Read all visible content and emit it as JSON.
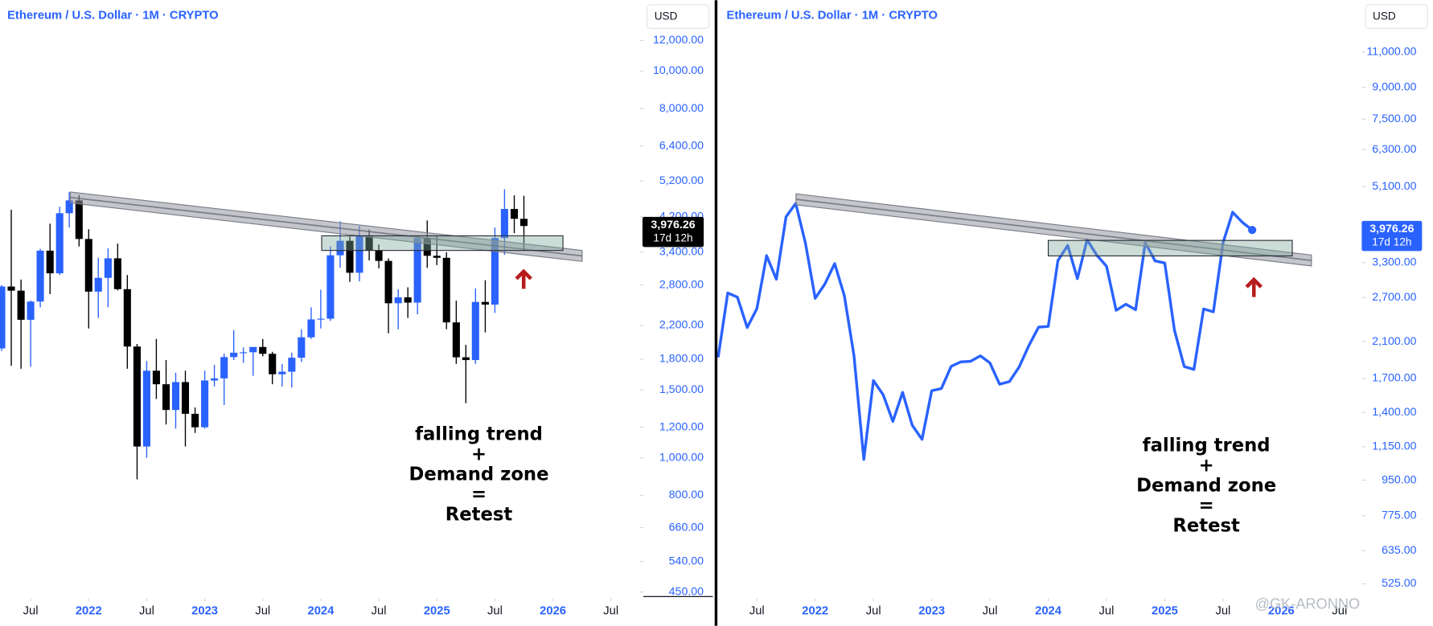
{
  "chart_data": [
    {
      "type": "candlestick",
      "title": "Ethereum / U.S. Dollar · 1M · CRYPTO",
      "currency": "USD",
      "log_scale": true,
      "up_color": "#2962ff",
      "down_color": "#000000",
      "x": [
        2021.25,
        2021.333,
        2021.417,
        2021.5,
        2021.583,
        2021.667,
        2021.75,
        2021.833,
        2021.917,
        2022.0,
        2022.083,
        2022.167,
        2022.25,
        2022.333,
        2022.417,
        2022.5,
        2022.583,
        2022.667,
        2022.75,
        2022.833,
        2022.917,
        2023.0,
        2023.083,
        2023.167,
        2023.25,
        2023.333,
        2023.417,
        2023.5,
        2023.583,
        2023.667,
        2023.75,
        2023.833,
        2023.917,
        2024.0,
        2024.083,
        2024.167,
        2024.25,
        2024.333,
        2024.417,
        2024.5,
        2024.583,
        2024.667,
        2024.75,
        2024.833,
        2024.917,
        2025.0,
        2025.083,
        2025.167,
        2025.25,
        2025.333,
        2025.417,
        2025.5,
        2025.583,
        2025.667,
        2025.75
      ],
      "open": [
        1919,
        2773,
        2706,
        2275,
        2536,
        3433,
        3000,
        4290,
        4630,
        3680,
        2690,
        2920,
        3280,
        2730,
        1940,
        1070,
        1680,
        1550,
        1330,
        1570,
        1300,
        1200,
        1585,
        1605,
        1822,
        1870,
        1875,
        1935,
        1858,
        1645,
        1670,
        1815,
        2050,
        2280,
        2290,
        3340,
        3640,
        3010,
        3760,
        3440,
        3230,
        2510,
        2600,
        2520,
        3700,
        3330,
        3290,
        2240,
        1820,
        1790,
        2530,
        2490,
        3700,
        4400,
        4150
      ],
      "high": [
        2798,
        4380,
        2890,
        2550,
        3470,
        4030,
        4460,
        4870,
        4780,
        3900,
        3290,
        3480,
        3580,
        2970,
        1970,
        1780,
        2030,
        1790,
        1660,
        1680,
        1350,
        1680,
        1740,
        1860,
        2140,
        1930,
        1930,
        2030,
        1880,
        1750,
        1870,
        2150,
        2450,
        2720,
        3520,
        4090,
        3730,
        3980,
        3890,
        3560,
        3280,
        2730,
        2760,
        3740,
        4110,
        3740,
        3400,
        2550,
        1960,
        2740,
        2880,
        3940,
        4950,
        4770,
        4760
      ],
      "low": [
        1890,
        1730,
        1700,
        1720,
        2450,
        2650,
        2970,
        3940,
        3520,
        2160,
        2300,
        2450,
        2710,
        1700,
        880,
        1000,
        1420,
        1220,
        1190,
        1070,
        1160,
        1190,
        1530,
        1370,
        1790,
        1760,
        1630,
        1830,
        1550,
        1530,
        1520,
        1770,
        2030,
        2160,
        2260,
        3100,
        2850,
        2860,
        3240,
        3090,
        2100,
        2150,
        2300,
        2350,
        3100,
        3150,
        2150,
        1750,
        1385,
        1750,
        2110,
        2370,
        3350,
        3810,
        3430
      ],
      "close": [
        2773,
        2706,
        2275,
        2536,
        3433,
        3000,
        4290,
        4630,
        3680,
        2690,
        2920,
        3280,
        2730,
        1940,
        1070,
        1680,
        1550,
        1330,
        1570,
        1300,
        1200,
        1585,
        1605,
        1822,
        1870,
        1875,
        1935,
        1858,
        1645,
        1670,
        1815,
        2050,
        2280,
        2290,
        3340,
        3640,
        3010,
        3760,
        3440,
        3230,
        2510,
        2600,
        2520,
        3700,
        3330,
        3290,
        2240,
        1820,
        1790,
        2530,
        2490,
        3700,
        4400,
        4150,
        3976.26
      ],
      "xlim": [
        2021.236,
        2026.748
      ],
      "xticks": [
        {
          "value": 2021.5,
          "label": "Jul"
        },
        2022,
        {
          "value": 2022.5,
          "label": "Jul"
        },
        2023,
        {
          "value": 2023.5,
          "label": "Jul"
        },
        2024,
        {
          "value": 2024.5,
          "label": "Jul"
        },
        2025,
        {
          "value": 2025.5,
          "label": "Jul"
        },
        2026,
        {
          "value": 2026.5,
          "label": "Jul"
        }
      ],
      "ylim": [
        438,
        12950
      ],
      "yticks": [
        {
          "value": 12000,
          "label": "12,000.00"
        },
        {
          "value": 10000,
          "label": "10,000.00"
        },
        {
          "value": 8000,
          "label": "8,000.00"
        },
        {
          "value": 6400,
          "label": "6,400.00"
        },
        {
          "value": 5200,
          "label": "5,200.00"
        },
        {
          "value": 4200,
          "label": "4,200.00"
        },
        {
          "value": 3400,
          "label": "3,400.00"
        },
        {
          "value": 2800,
          "label": "2,800.00"
        },
        {
          "value": 2200,
          "label": "2,200.00"
        },
        {
          "value": 1800,
          "label": "1,800.00"
        },
        {
          "value": 1500,
          "label": "1,500.00"
        },
        {
          "value": 1200,
          "label": "1,200.00"
        },
        {
          "value": 1000,
          "label": "1,000.00"
        },
        {
          "value": 800,
          "label": "800.00"
        },
        {
          "value": 660,
          "label": "660.00"
        },
        {
          "value": 540,
          "label": "540.00"
        },
        {
          "value": 450,
          "label": "450.00"
        }
      ],
      "price_tag": {
        "value": 3976.26,
        "label": "3,976.26",
        "countdown": "17d 12h",
        "color": "#000000"
      },
      "annotations": [
        "falling trend",
        "+",
        "Demand zone",
        "=",
        "Retest"
      ]
    },
    {
      "type": "line",
      "title": "Ethereum / U.S. Dollar · 1M · CRYPTO",
      "currency": "USD",
      "log_scale": true,
      "color": "#2962ff",
      "x": [
        2021.167,
        2021.25,
        2021.333,
        2021.417,
        2021.5,
        2021.583,
        2021.667,
        2021.75,
        2021.833,
        2021.917,
        2022.0,
        2022.083,
        2022.167,
        2022.25,
        2022.333,
        2022.417,
        2022.5,
        2022.583,
        2022.667,
        2022.75,
        2022.833,
        2022.917,
        2023.0,
        2023.083,
        2023.167,
        2023.25,
        2023.333,
        2023.417,
        2023.5,
        2023.583,
        2023.667,
        2023.75,
        2023.833,
        2023.917,
        2024.0,
        2024.083,
        2024.167,
        2024.25,
        2024.333,
        2024.417,
        2024.5,
        2024.583,
        2024.667,
        2024.75,
        2024.833,
        2024.917,
        2025.0,
        2025.083,
        2025.167,
        2025.25,
        2025.333,
        2025.417,
        2025.5,
        2025.583,
        2025.667,
        2025.75
      ],
      "values": [
        1919,
        2773,
        2706,
        2275,
        2536,
        3433,
        3000,
        4290,
        4630,
        3680,
        2690,
        2920,
        3280,
        2730,
        1940,
        1070,
        1680,
        1550,
        1330,
        1570,
        1300,
        1200,
        1585,
        1605,
        1822,
        1870,
        1875,
        1935,
        1858,
        1645,
        1670,
        1815,
        2050,
        2280,
        2290,
        3340,
        3640,
        3010,
        3760,
        3440,
        3230,
        2510,
        2600,
        2520,
        3700,
        3330,
        3290,
        2240,
        1820,
        1790,
        2530,
        2490,
        3700,
        4400,
        4150,
        3976.26
      ],
      "xlim": [
        2021.161,
        2026.69
      ],
      "xticks": [
        {
          "value": 2021.5,
          "label": "Jul"
        },
        2022,
        {
          "value": 2022.5,
          "label": "Jul"
        },
        2023,
        {
          "value": 2023.5,
          "label": "Jul"
        },
        2024,
        {
          "value": 2024.5,
          "label": "Jul"
        },
        2025,
        {
          "value": 2025.5,
          "label": "Jul"
        },
        2026,
        {
          "value": 2026.5,
          "label": "Jul"
        }
      ],
      "ylim": [
        488,
        12660
      ],
      "yticks": [
        {
          "value": 11000,
          "label": "11,000.00"
        },
        {
          "value": 9000,
          "label": "9,000.00"
        },
        {
          "value": 7500,
          "label": "7,500.00"
        },
        {
          "value": 6300,
          "label": "6,300.00"
        },
        {
          "value": 5100,
          "label": "5,100.00"
        },
        {
          "value": 3300,
          "label": "3,300.00"
        },
        {
          "value": 2700,
          "label": "2,700.00"
        },
        {
          "value": 2100,
          "label": "2,100.00"
        },
        {
          "value": 1700,
          "label": "1,700.00"
        },
        {
          "value": 1400,
          "label": "1,400.00"
        },
        {
          "value": 1150,
          "label": "1,150.00"
        },
        {
          "value": 950,
          "label": "950.00"
        },
        {
          "value": 775,
          "label": "775.00"
        },
        {
          "value": 635,
          "label": "635.00"
        },
        {
          "value": 525,
          "label": "525.00"
        }
      ],
      "price_tag": {
        "value": 3976.26,
        "label": "3,976.26",
        "countdown": "17d 12h",
        "color": "#2962ff"
      },
      "annotations": [
        "falling trend",
        "+",
        "Demand zone",
        "=",
        "Retest"
      ],
      "watermark": "@GK-ARONNO"
    }
  ]
}
